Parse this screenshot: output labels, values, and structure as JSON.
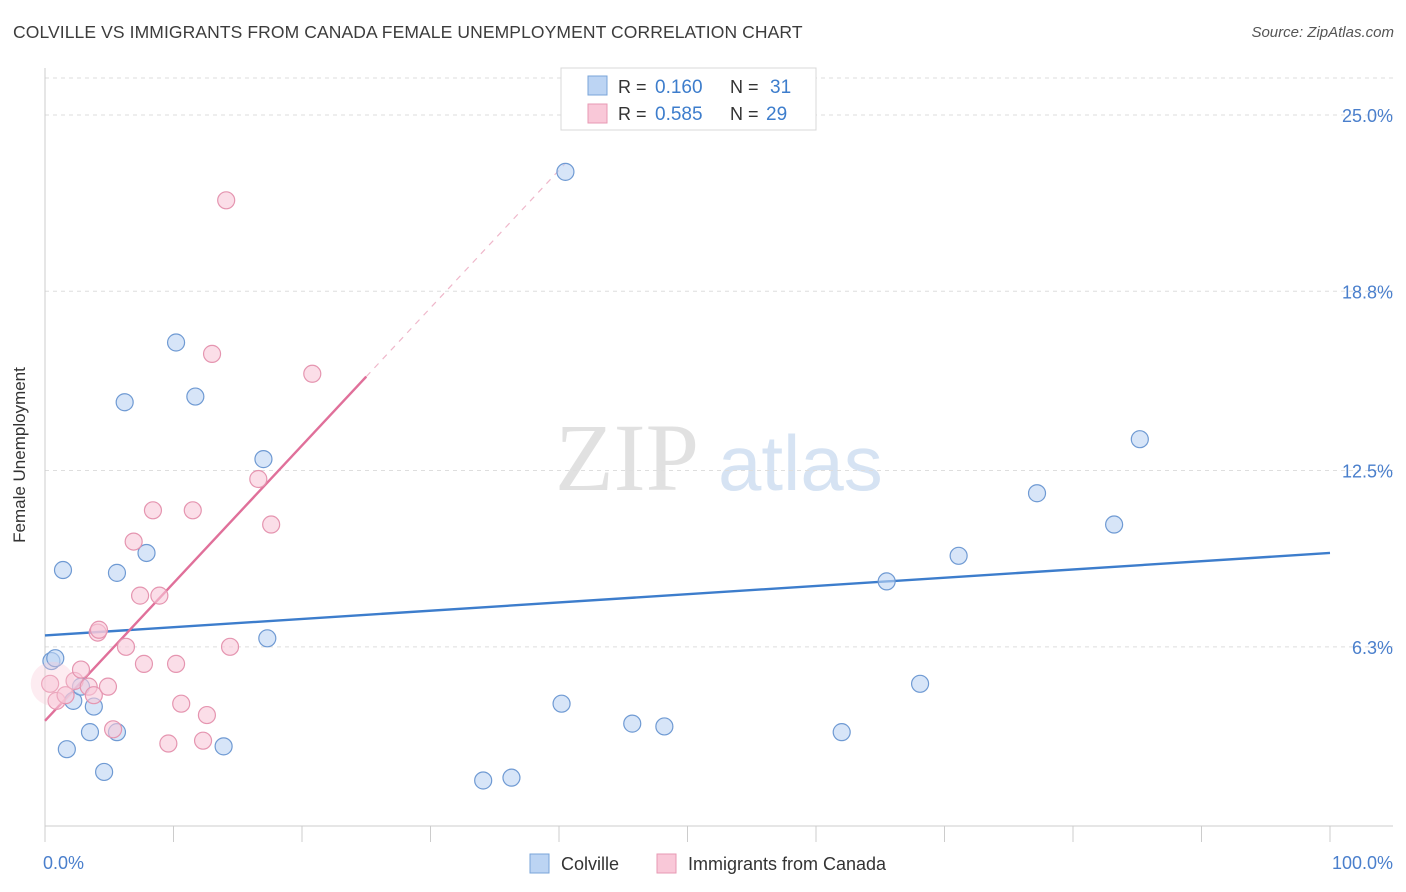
{
  "header": {
    "title": "COLVILLE VS IMMIGRANTS FROM CANADA FEMALE UNEMPLOYMENT CORRELATION CHART",
    "source": "Source: ZipAtlas.com"
  },
  "watermark": {
    "zip": "ZIP",
    "atlas": "atlas"
  },
  "legend_top": {
    "rows": [
      {
        "r_label": "R =",
        "r_value": "0.160",
        "n_label": "N =",
        "n_value": "31"
      },
      {
        "r_label": "R =",
        "r_value": "0.585",
        "n_label": "N =",
        "n_value": "29"
      }
    ]
  },
  "legend_bottom": {
    "items": [
      "Colville",
      "Immigrants from Canada"
    ]
  },
  "chart_data": {
    "type": "scatter",
    "ylabel": "Female Unemployment",
    "xlim": [
      0,
      100
    ],
    "ylim": [
      0,
      26.3
    ],
    "x_tick_labels": [
      "0.0%",
      "100.0%"
    ],
    "y_ticks": [
      6.3,
      12.5,
      18.8,
      25.0
    ],
    "y_tick_labels": [
      "6.3%",
      "12.5%",
      "18.8%",
      "25.0%"
    ],
    "grid": true,
    "legend_placement": "top-center",
    "colors": {
      "colville": "#3d7dcc",
      "canada": "#e0709a",
      "tick_label": "#4a7fcc"
    },
    "series": [
      {
        "name": "Colville",
        "points": [
          [
            0.5,
            5.8
          ],
          [
            0.8,
            5.9
          ],
          [
            1.4,
            9.0
          ],
          [
            2.2,
            4.4
          ],
          [
            2.8,
            4.9
          ],
          [
            3.5,
            3.3
          ],
          [
            3.8,
            4.2
          ],
          [
            1.7,
            2.7
          ],
          [
            4.6,
            1.9
          ],
          [
            5.6,
            8.9
          ],
          [
            5.6,
            3.3
          ],
          [
            6.2,
            14.9
          ],
          [
            7.9,
            9.6
          ],
          [
            10.2,
            17.0
          ],
          [
            11.7,
            15.1
          ],
          [
            13.9,
            2.8
          ],
          [
            17.0,
            12.9
          ],
          [
            17.3,
            6.6
          ],
          [
            34.1,
            1.6
          ],
          [
            36.3,
            1.7
          ],
          [
            40.2,
            4.3
          ],
          [
            45.7,
            3.6
          ],
          [
            48.2,
            3.5
          ],
          [
            62.0,
            3.3
          ],
          [
            65.5,
            8.6
          ],
          [
            68.1,
            5.0
          ],
          [
            71.1,
            9.5
          ],
          [
            77.2,
            11.7
          ],
          [
            83.2,
            10.6
          ],
          [
            85.2,
            13.6
          ],
          [
            40.5,
            23.0
          ]
        ],
        "trend": {
          "x": [
            0,
            100
          ],
          "y": [
            6.7,
            9.6
          ]
        }
      },
      {
        "name": "Immigrants from Canada",
        "points": [
          [
            0.4,
            5.0
          ],
          [
            0.9,
            4.4
          ],
          [
            1.6,
            4.6
          ],
          [
            2.3,
            5.1
          ],
          [
            2.8,
            5.5
          ],
          [
            3.4,
            4.9
          ],
          [
            3.8,
            4.6
          ],
          [
            4.1,
            6.8
          ],
          [
            4.2,
            6.9
          ],
          [
            4.9,
            4.9
          ],
          [
            5.3,
            3.4
          ],
          [
            6.3,
            6.3
          ],
          [
            6.9,
            10.0
          ],
          [
            7.4,
            8.1
          ],
          [
            7.7,
            5.7
          ],
          [
            8.4,
            11.1
          ],
          [
            8.9,
            8.1
          ],
          [
            9.6,
            2.9
          ],
          [
            10.2,
            5.7
          ],
          [
            10.6,
            4.3
          ],
          [
            11.5,
            11.1
          ],
          [
            12.3,
            3.0
          ],
          [
            12.6,
            3.9
          ],
          [
            14.1,
            22.0
          ],
          [
            14.4,
            6.3
          ],
          [
            13.0,
            16.6
          ],
          [
            16.6,
            12.2
          ],
          [
            17.6,
            10.6
          ],
          [
            20.8,
            15.9
          ]
        ],
        "trend": {
          "x": [
            0,
            25
          ],
          "y": [
            3.7,
            15.8
          ]
        },
        "trend_dashed": {
          "x": [
            25,
            40.5
          ],
          "y": [
            15.8,
            23.3
          ]
        }
      }
    ]
  }
}
